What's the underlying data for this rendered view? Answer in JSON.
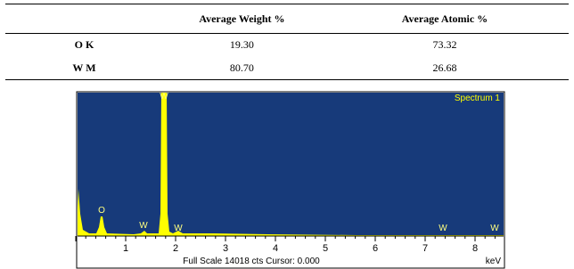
{
  "table": {
    "header": [
      "Average Weight %",
      "Average Atomic %"
    ],
    "rows": [
      [
        "O K",
        "19.30",
        "73.32"
      ],
      [
        "W M",
        "80.70",
        "26.68"
      ]
    ]
  },
  "spectrum": {
    "title": "Spectrum 1",
    "peak_labels": [
      "W",
      "O",
      "W",
      "W",
      "W",
      "W"
    ],
    "axis_labels": [
      "1",
      "2",
      "3",
      "4",
      "5",
      "6",
      "7",
      "8"
    ],
    "footer": "Full Scale 14018 cts Cursor: 0.000",
    "unit": "keV"
  }
}
